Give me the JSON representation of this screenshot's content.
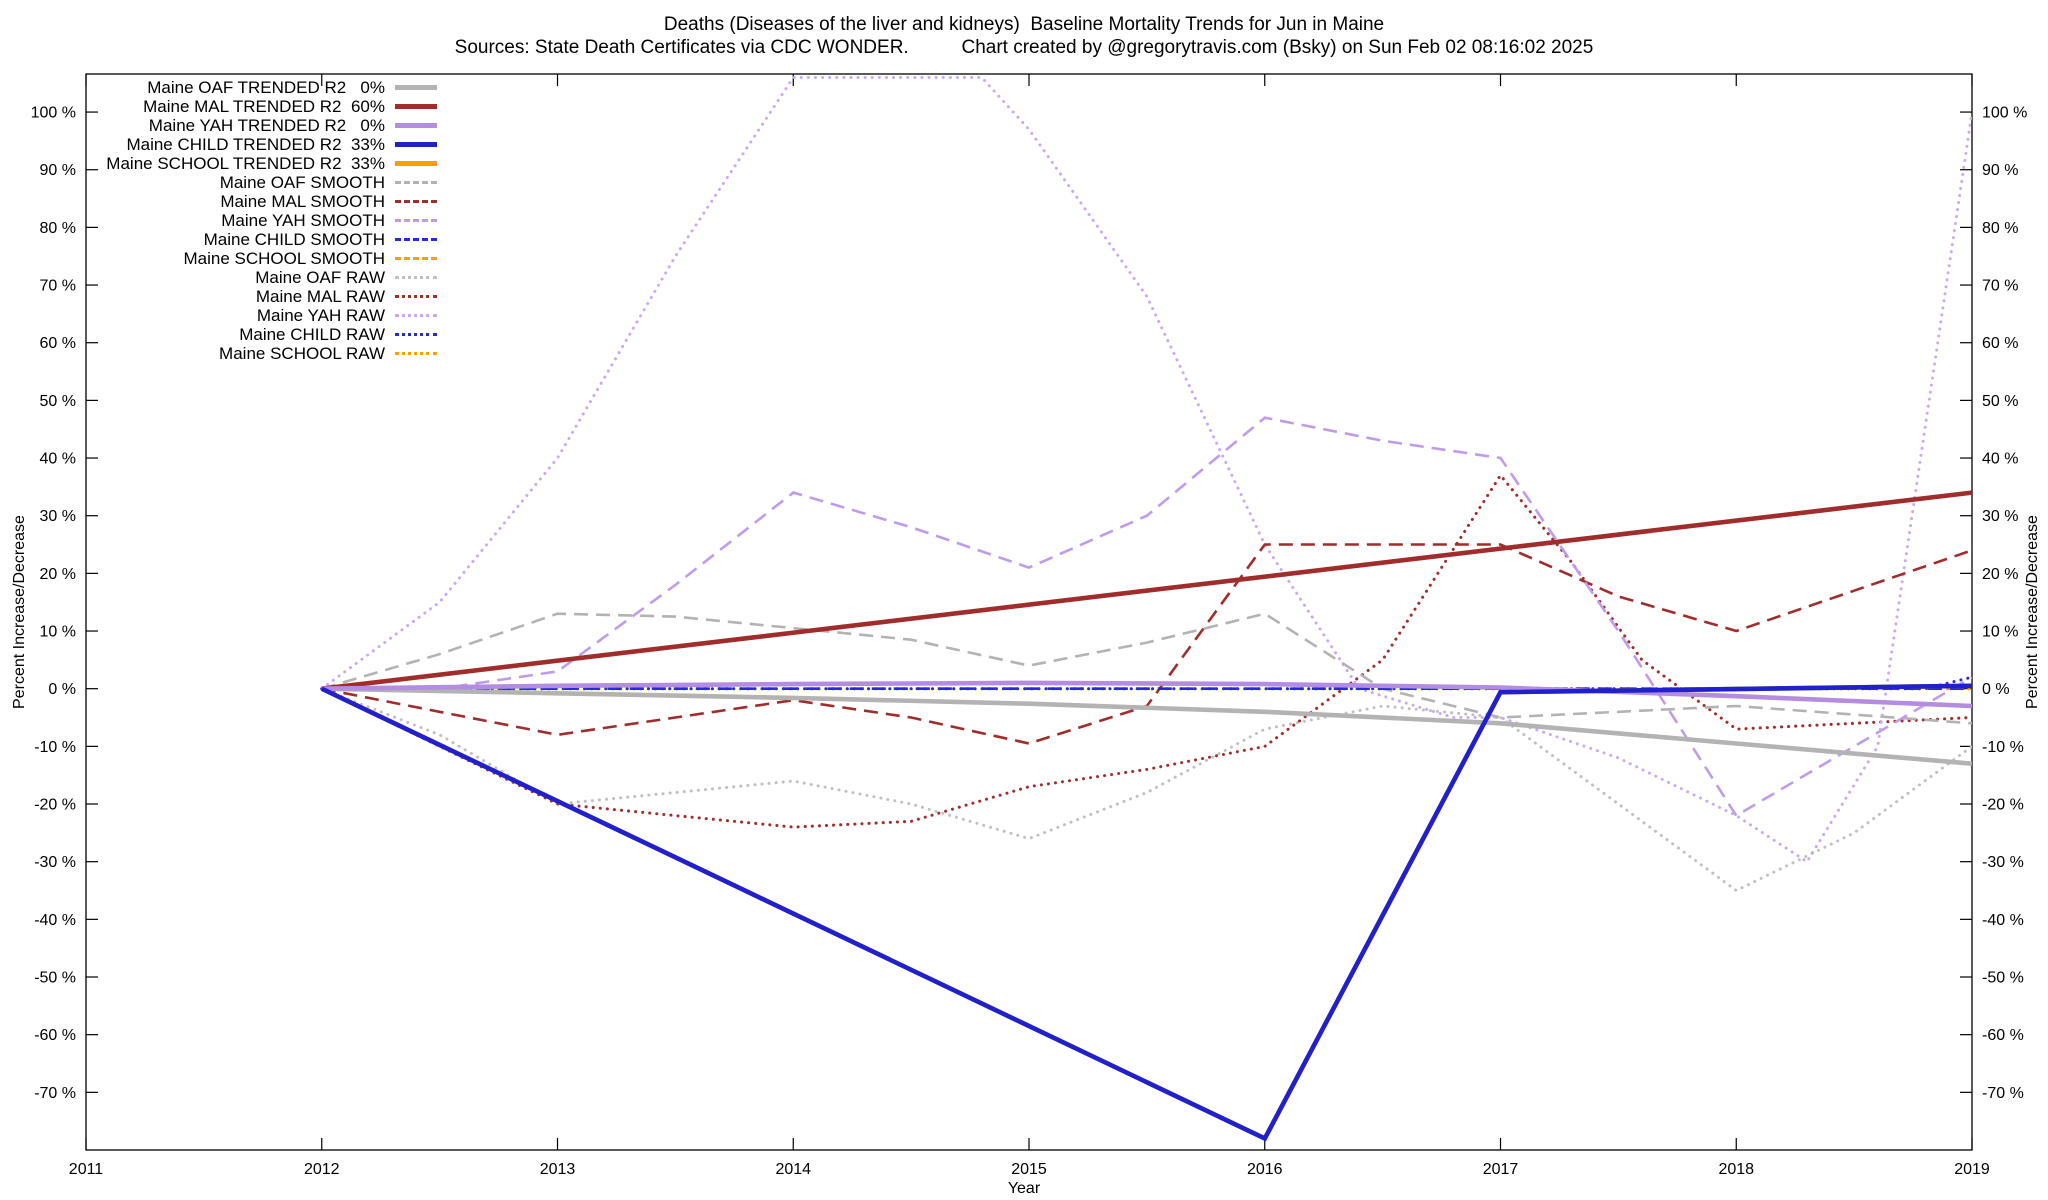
{
  "chart_data": {
    "type": "line",
    "title": "Deaths (Diseases of the liver and kidneys)  Baseline Mortality Trends for Jun in Maine",
    "subtitle": "Sources: State Death Certificates via CDC WONDER.          Chart created by @gregorytravis.com (Bsky) on Sun Feb 02 08:16:02 2025",
    "xlabel": "Year",
    "ylabel_left": "Percent Increase/Decrease",
    "ylabel_right": "Percent Increase/Decrease",
    "xlim": [
      2011,
      2019
    ],
    "ylim": [
      -80,
      106.6
    ],
    "x_ticks": [
      2011,
      2012,
      2013,
      2014,
      2015,
      2016,
      2017,
      2018,
      2019
    ],
    "y_ticks": [
      -70,
      -60,
      -50,
      -40,
      -30,
      -20,
      -10,
      0,
      10,
      20,
      30,
      40,
      50,
      60,
      70,
      80,
      90,
      100
    ],
    "y_tick_suffix": " %",
    "grid": false,
    "legend_position": "top-left-inside",
    "series": [
      {
        "name": "Maine OAF TRENDED R2   0%",
        "color": "#b3b3b3",
        "style": "solid-thick",
        "z": 3.1,
        "x": [
          2012,
          2013,
          2014,
          2015,
          2016,
          2017,
          2018,
          2019
        ],
        "y": [
          0,
          -0.8,
          -1.6,
          -2.6,
          -4,
          -6,
          -9.5,
          -13
        ]
      },
      {
        "name": "Maine MAL TRENDED R2  60%",
        "color": "#a02c2c",
        "style": "solid-thick",
        "z": 3.2,
        "x": [
          2012,
          2019
        ],
        "y": [
          0,
          34
        ]
      },
      {
        "name": "Maine YAH TRENDED R2   0%",
        "color": "#b48ce0",
        "style": "solid-thick",
        "z": 3.3,
        "x": [
          2012,
          2013,
          2014,
          2015,
          2016,
          2017,
          2018,
          2019
        ],
        "y": [
          0,
          0.5,
          0.8,
          1,
          0.8,
          0.2,
          -1.3,
          -3
        ]
      },
      {
        "name": "Maine CHILD TRENDED R2  33%",
        "color": "#2020cc",
        "style": "solid-thick",
        "z": 3.4,
        "x": [
          2012,
          2016,
          2017,
          2019
        ],
        "y": [
          0,
          -78,
          -0.6,
          0.5
        ]
      },
      {
        "name": "Maine SCHOOL TRENDED R2  33%",
        "color": "#f8a000",
        "style": "solid-thick",
        "z": 3.0,
        "x": [
          2012,
          2016,
          2017,
          2019
        ],
        "y": [
          0,
          -78,
          -0.6,
          0.5
        ]
      },
      {
        "name": "Maine OAF SMOOTH",
        "color": "#b3b3b3",
        "style": "dashed",
        "z": 2.1,
        "x": [
          2012,
          2012.5,
          2013,
          2013.5,
          2014,
          2014.5,
          2015,
          2015.5,
          2016,
          2016.5,
          2017,
          2017.5,
          2018,
          2018.5,
          2019
        ],
        "y": [
          0,
          6,
          13,
          12.5,
          10.5,
          8.5,
          4,
          8,
          13,
          0,
          -5,
          -4,
          -3,
          -4.5,
          -6
        ]
      },
      {
        "name": "Maine MAL SMOOTH",
        "color": "#a02c2c",
        "style": "dashed",
        "z": 2.2,
        "x": [
          2012,
          2012.5,
          2013,
          2013.5,
          2014,
          2014.5,
          2015,
          2015.5,
          2016,
          2016.5,
          2017,
          2017.5,
          2018,
          2018.5,
          2019
        ],
        "y": [
          0,
          -4,
          -8,
          -5,
          -2,
          -5,
          -9.5,
          -3,
          25,
          25,
          25,
          16,
          10,
          17,
          24
        ]
      },
      {
        "name": "Maine YAH SMOOTH",
        "color": "#bf9ceb",
        "style": "dashed",
        "z": 2.3,
        "x": [
          2012,
          2012.5,
          2013,
          2013.5,
          2014,
          2014.5,
          2015,
          2015.5,
          2016,
          2016.5,
          2017,
          2017.5,
          2018,
          2018.5,
          2019
        ],
        "y": [
          0,
          0,
          3,
          18,
          34,
          28,
          21,
          30,
          47,
          43,
          40,
          10,
          -22,
          -10,
          2
        ]
      },
      {
        "name": "Maine CHILD SMOOTH",
        "color": "#2828dd",
        "style": "dashed",
        "z": 2.4,
        "x": [
          2012,
          2019
        ],
        "y": [
          0,
          0
        ]
      },
      {
        "name": "Maine SCHOOL SMOOTH",
        "color": "#f8a000",
        "style": "dashed",
        "z": 2.0,
        "x": [
          2012,
          2019
        ],
        "y": [
          0,
          0
        ]
      },
      {
        "name": "Maine OAF RAW",
        "color": "#c0c0c0",
        "style": "dotted",
        "z": 1.1,
        "x": [
          2012,
          2012.5,
          2013,
          2013.5,
          2014,
          2014.5,
          2015,
          2015.5,
          2016,
          2016.5,
          2017,
          2017.5,
          2018,
          2018.5,
          2019
        ],
        "y": [
          0,
          -8,
          -20,
          -18,
          -16,
          -20,
          -26,
          -18,
          -7,
          -3,
          -5,
          -20,
          -35,
          -25,
          -10
        ]
      },
      {
        "name": "Maine MAL RAW",
        "color": "#a02c2c",
        "style": "dotted",
        "z": 1.2,
        "x": [
          2012,
          2012.5,
          2013,
          2013.5,
          2014,
          2014.5,
          2015,
          2015.5,
          2016,
          2016.5,
          2017,
          2017.3,
          2017.6,
          2018,
          2018.5,
          2019
        ],
        "y": [
          0,
          -10,
          -20,
          -22,
          -24,
          -23,
          -17,
          -14,
          -10,
          5,
          37,
          22,
          5,
          -7,
          -6,
          -5
        ]
      },
      {
        "name": "Maine YAH RAW",
        "color": "#c9aaf2",
        "style": "dotted",
        "z": 1.3,
        "x": [
          2012,
          2012.5,
          2013,
          2013.5,
          2014,
          2014.4,
          2014.8,
          2015,
          2015.5,
          2016,
          2016.4,
          2016.8,
          2017,
          2017.5,
          2018,
          2018.3,
          2018.6,
          2019
        ],
        "y": [
          0,
          15,
          40,
          75,
          106,
          106,
          106,
          97,
          68,
          25,
          0,
          -5,
          -5,
          -12,
          -22,
          -30,
          -10,
          100
        ]
      },
      {
        "name": "Maine CHILD RAW",
        "color": "#2828dd",
        "style": "dotted",
        "z": 1.4,
        "x": [
          2012,
          2018.8,
          2019
        ],
        "y": [
          0,
          0,
          2
        ]
      },
      {
        "name": "Maine SCHOOL RAW",
        "color": "#f8a000",
        "style": "dotted",
        "z": 1.0,
        "x": [
          2012,
          2019
        ],
        "y": [
          0,
          0
        ]
      }
    ]
  }
}
